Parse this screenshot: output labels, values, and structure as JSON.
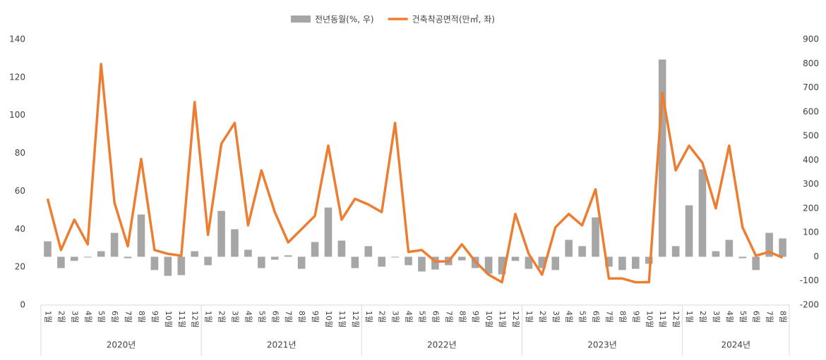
{
  "chart_data": {
    "type": "combo",
    "categories": [
      "1월",
      "2월",
      "3월",
      "4월",
      "5월",
      "6월",
      "7월",
      "8월",
      "9월",
      "10월",
      "11월",
      "12월",
      "1월",
      "2월",
      "3월",
      "4월",
      "5월",
      "6월",
      "7월",
      "8월",
      "9월",
      "10월",
      "11월",
      "12월",
      "1월",
      "2월",
      "3월",
      "4월",
      "5월",
      "6월",
      "7월",
      "8월",
      "9월",
      "10월",
      "11월",
      "12월",
      "1월",
      "2월",
      "3월",
      "4월",
      "5월",
      "6월",
      "7월",
      "8월",
      "9월",
      "10월",
      "11월",
      "12월",
      "1월",
      "2월",
      "3월",
      "4월",
      "5월",
      "6월",
      "7월",
      "8월"
    ],
    "groups": [
      "2020년",
      "2021년",
      "2022년",
      "2023년",
      "2024년"
    ],
    "series": [
      {
        "name": "전년동월(%, 우)",
        "type": "bar",
        "axis": "y2",
        "color": "#a6a6a6",
        "values": [
          64,
          -47,
          -17,
          -3,
          23,
          99,
          -6,
          175,
          -55,
          -79,
          -76,
          23,
          -35,
          190,
          114,
          29,
          -47,
          -12,
          6,
          -50,
          61,
          204,
          67,
          -47,
          44,
          -41,
          -3,
          -35,
          -61,
          -53,
          -35,
          -15,
          -47,
          -70,
          -73,
          -17,
          -50,
          -47,
          -55,
          70,
          44,
          163,
          -41,
          -55,
          -50,
          -29,
          817,
          44,
          213,
          362,
          23,
          70,
          -6,
          -55,
          99,
          76
        ]
      },
      {
        "name": "건축착공면적(만㎡, 좌)",
        "type": "line",
        "color": "#ed7d31",
        "values": [
          56,
          29,
          45,
          32,
          127,
          54,
          31,
          77,
          29,
          27,
          26,
          107,
          37,
          85,
          96,
          42,
          71,
          49,
          33,
          40,
          47,
          84,
          45,
          56,
          53,
          49,
          96,
          28,
          29,
          23,
          23,
          32,
          23,
          16,
          12,
          48,
          27,
          16,
          41,
          48,
          42,
          61,
          14,
          14,
          12,
          12,
          112,
          71,
          84,
          75,
          51,
          84,
          41,
          26,
          28,
          25
        ]
      }
    ],
    "ylim": [
      0,
      140
    ],
    "yticks": [
      0,
      20,
      40,
      60,
      80,
      100,
      120,
      140
    ],
    "y2lim": [
      -200,
      900
    ],
    "y2ticks": [
      -200,
      -100,
      0,
      100,
      200,
      300,
      400,
      500,
      600,
      700,
      800,
      900
    ]
  }
}
